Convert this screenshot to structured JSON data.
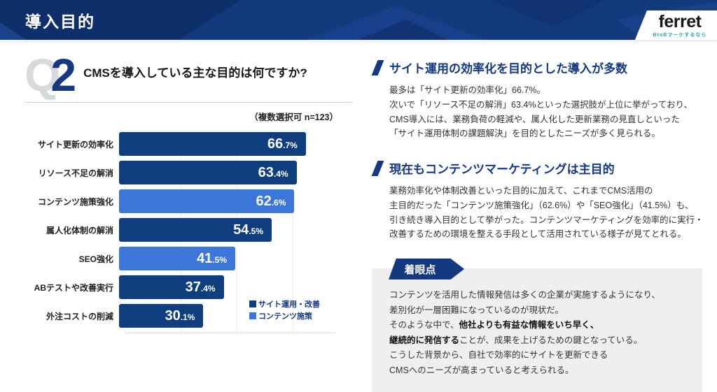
{
  "header": {
    "title": "導入目的",
    "logo": {
      "brand": "ferret",
      "tagline": "BtoBマーケするなら",
      "tagline_color": "#2aa9a2"
    }
  },
  "question": {
    "q_letter": "Q",
    "q_number": "2",
    "text": "CMSを導入している主な目的は何ですか?"
  },
  "chart_data": {
    "type": "bar",
    "orientation": "horizontal",
    "title": "CMSを導入している主な目的は何ですか?",
    "note": "（複数選択可  n=123）",
    "sample_size": 123,
    "unit": "%",
    "xlim": [
      0,
      70
    ],
    "grid": "faint-vertical-every-20",
    "legend_position": "bottom-right",
    "categories": [
      "サイト更新の効率化",
      "リソース不足の解消",
      "コンテンツ施策強化",
      "属人化体制の解消",
      "SEO強化",
      "ABテストや改善実行",
      "外注コストの削減"
    ],
    "values": [
      66.7,
      63.4,
      62.6,
      54.5,
      41.5,
      37.4,
      30.1
    ],
    "series_index": [
      0,
      0,
      1,
      0,
      1,
      0,
      0
    ],
    "series": [
      {
        "name": "サイト運用・改善",
        "color": "#0e3e7e"
      },
      {
        "name": "コンテンツ施策",
        "color": "#3d76d9"
      }
    ]
  },
  "sections": [
    {
      "heading": "サイト運用の効率化を目的とした導入が多数",
      "lines": [
        "最多は「サイト更新の効率化」66.7%。",
        "次いで「リソース不足の解消」63.4%といった選択肢が上位に挙がっており、",
        "CMS導入には、業務負荷の軽減や、属人化した更新業務の見直しといった",
        "「サイト運用体制の課題解決」を目的としたニーズが多く見られる。"
      ]
    },
    {
      "heading": "現在もコンテンツマーケティングは主目的",
      "lines": [
        "業務効率化や体制改善といった目的に加えて、これまでCMS活用の",
        "主目的だった「コンテンツ施策強化」（62.6%）や「SEO強化」（41.5%）も、",
        "引き続き導入目的として挙がった。コンテンツマーケティングを効率的に実行・",
        "改善するための環境を整える手段として活用されている様子が見てとれる。"
      ]
    }
  ],
  "callout": {
    "badge": "着眼点",
    "lines": [
      [
        {
          "t": "コンテンツを活用した情報発信は多くの企業が実施するようになり、",
          "b": false
        }
      ],
      [
        {
          "t": "差別化が一層困難になっているのが現状だ。",
          "b": false
        }
      ],
      [
        {
          "t": "そのような中で、",
          "b": false
        },
        {
          "t": "他社よりも有益な情報をいち早く、",
          "b": true
        }
      ],
      [
        {
          "t": "継続的に発信する",
          "b": true
        },
        {
          "t": "ことが、成果を上げるための鍵となっている。",
          "b": false
        }
      ],
      [
        {
          "t": "こうした背景から、自社で効率的にサイトを更新できる",
          "b": false
        }
      ],
      [
        {
          "t": "CMSへのニーズが高まっていると考えられる。",
          "b": false
        }
      ]
    ]
  },
  "colors": {
    "header_bg": "#143a7e",
    "heading_blue": "#15397e",
    "bar_dark": "#0e3e7e",
    "bar_light": "#3d76d9",
    "callout_bg": "#efefef"
  }
}
